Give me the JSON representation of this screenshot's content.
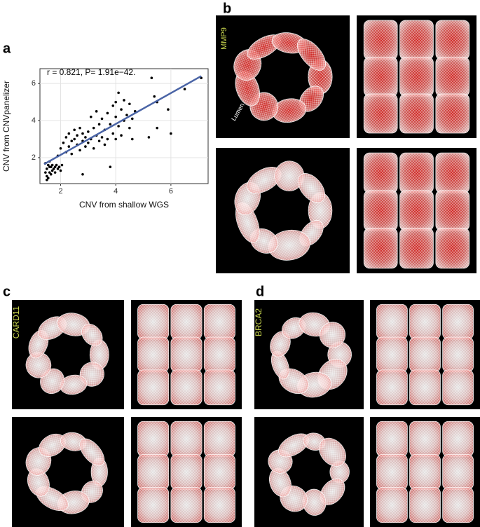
{
  "panels": [
    "a",
    "b",
    "c",
    "d"
  ],
  "image_labels": {
    "mmp9": "MMP9",
    "lumen": "Lumen",
    "card11": "CARD11",
    "brca2": "BRCA2"
  },
  "chart_data": {
    "type": "scatter",
    "annotation": "r = 0.821, P= 1.91e−42.",
    "xlabel": "CNV from shallow WGS",
    "ylabel": "CNV from CNVpanelizer",
    "xlim": [
      1.25,
      7.35
    ],
    "ylim": [
      0.6,
      6.8
    ],
    "xticks": [
      2,
      4,
      6
    ],
    "yticks": [
      2,
      4,
      6
    ],
    "grid": true,
    "color": "#000000",
    "x": [
      1.45,
      1.5,
      1.5,
      1.55,
      1.55,
      1.6,
      1.6,
      1.65,
      1.45,
      1.7,
      1.7,
      1.75,
      1.8,
      1.8,
      1.85,
      1.9,
      1.95,
      2.0,
      2.05,
      1.5,
      1.6,
      1.65,
      1.9,
      2.0,
      2.1,
      2.2,
      2.2,
      2.3,
      2.3,
      2.4,
      2.4,
      2.5,
      2.5,
      2.6,
      2.6,
      2.7,
      2.7,
      2.8,
      2.8,
      2.8,
      2.9,
      2.9,
      3.0,
      3.0,
      3.1,
      3.1,
      3.2,
      3.2,
      3.3,
      3.3,
      3.4,
      3.4,
      3.5,
      3.5,
      3.6,
      3.6,
      3.7,
      3.7,
      3.8,
      3.8,
      3.9,
      3.9,
      4.0,
      4.0,
      4.0,
      4.1,
      4.1,
      4.2,
      4.2,
      4.3,
      4.3,
      4.4,
      4.5,
      4.5,
      4.6,
      4.6,
      4.7,
      5.2,
      5.3,
      5.4,
      5.5,
      5.5,
      5.9,
      6.0,
      6.5,
      7.1
    ],
    "values": [
      1.2,
      1.0,
      1.4,
      0.9,
      1.6,
      1.2,
      1.5,
      1.1,
      1.7,
      1.3,
      1.6,
      1.4,
      1.2,
      1.5,
      1.6,
      1.4,
      1.5,
      1.3,
      1.6,
      0.8,
      1.8,
      1.5,
      2.1,
      2.5,
      2.8,
      2.3,
      3.1,
      2.6,
      3.3,
      2.9,
      2.2,
      3.0,
      3.5,
      2.7,
      3.2,
      2.4,
      3.6,
      2.9,
      3.3,
      1.1,
      2.6,
      3.1,
      3.4,
      2.8,
      3.0,
      4.2,
      2.5,
      3.6,
      3.2,
      4.5,
      2.9,
      3.8,
      3.1,
      4.1,
      3.5,
      2.7,
      4.4,
      3.0,
      1.5,
      3.8,
      4.8,
      3.3,
      5.0,
      4.2,
      3.0,
      5.5,
      3.7,
      4.6,
      3.2,
      5.1,
      4.0,
      4.3,
      3.6,
      4.9,
      3.0,
      4.1,
      4.5,
      3.1,
      6.3,
      5.3,
      3.6,
      5.0,
      4.6,
      3.3,
      5.7,
      6.3
    ],
    "fit_line": {
      "x": [
        1.4,
        7.1
      ],
      "y": [
        1.65,
        6.4
      ],
      "color": "#4a64a6"
    }
  }
}
